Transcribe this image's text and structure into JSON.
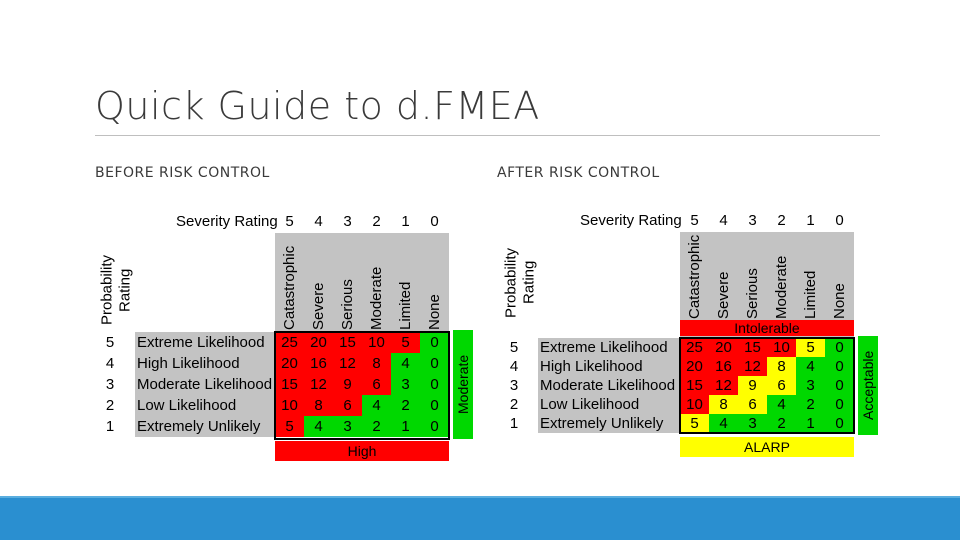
{
  "title": "Quick Guide to d.FMEA",
  "before": {
    "heading": "BEFORE RISK CONTROL",
    "severity_label": "Severity Rating",
    "probability_label_line1": "Probability",
    "probability_label_line2": "Rating",
    "severity_numbers": [
      "5",
      "4",
      "3",
      "2",
      "1",
      "0"
    ],
    "severity_names": [
      "Catastrophic",
      "Severe",
      "Serious",
      "Moderate",
      "Limited",
      "None"
    ],
    "probability_numbers": [
      "5",
      "4",
      "3",
      "2",
      "1"
    ],
    "likelihood_names": [
      "Extreme Likelihood",
      "High Likelihood",
      "Moderate Likelihood",
      "Low Likelihood",
      "Extremely Unlikely"
    ],
    "cells": [
      [
        "25",
        "20",
        "15",
        "10",
        "5",
        "0"
      ],
      [
        "20",
        "16",
        "12",
        "8",
        "4",
        "0"
      ],
      [
        "15",
        "12",
        "9",
        "6",
        "3",
        "0"
      ],
      [
        "10",
        "8",
        "6",
        "4",
        "2",
        "0"
      ],
      [
        "5",
        "4",
        "3",
        "2",
        "1",
        "0"
      ]
    ],
    "zones": [
      [
        "red",
        "red",
        "red",
        "red",
        "red",
        "green"
      ],
      [
        "red",
        "red",
        "red",
        "red",
        "green",
        "green"
      ],
      [
        "red",
        "red",
        "red",
        "red",
        "green",
        "green"
      ],
      [
        "red",
        "red",
        "red",
        "green",
        "green",
        "green"
      ],
      [
        "red",
        "green",
        "green",
        "green",
        "green",
        "green"
      ]
    ],
    "bottom_band": "High",
    "side_band": "Moderate"
  },
  "after": {
    "heading": "AFTER RISK CONTROL",
    "severity_label": "Severity Rating",
    "probability_label_line1": "Probability",
    "probability_label_line2": "Rating",
    "severity_numbers": [
      "5",
      "4",
      "3",
      "2",
      "1",
      "0"
    ],
    "severity_names": [
      "Catastrophic",
      "Severe",
      "Serious",
      "Moderate",
      "Limited",
      "None"
    ],
    "probability_numbers": [
      "5",
      "4",
      "3",
      "2",
      "1"
    ],
    "likelihood_names": [
      "Extreme Likelihood",
      "High Likelihood",
      "Moderate Likelihood",
      "Low Likelihood",
      "Extremely Unlikely"
    ],
    "cells": [
      [
        "25",
        "20",
        "15",
        "10",
        "5",
        "0"
      ],
      [
        "20",
        "16",
        "12",
        "8",
        "4",
        "0"
      ],
      [
        "15",
        "12",
        "9",
        "6",
        "3",
        "0"
      ],
      [
        "10",
        "8",
        "6",
        "4",
        "2",
        "0"
      ],
      [
        "5",
        "4",
        "3",
        "2",
        "1",
        "0"
      ]
    ],
    "zones": [
      [
        "red",
        "red",
        "red",
        "red",
        "yellow",
        "green"
      ],
      [
        "red",
        "red",
        "red",
        "yellow",
        "green",
        "green"
      ],
      [
        "red",
        "red",
        "yellow",
        "yellow",
        "green",
        "green"
      ],
      [
        "red",
        "yellow",
        "yellow",
        "green",
        "green",
        "green"
      ],
      [
        "yellow",
        "green",
        "green",
        "green",
        "green",
        "green"
      ]
    ],
    "top_band": "Intolerable",
    "bottom_band": "ALARP",
    "side_band": "Acceptable"
  },
  "colors": {
    "red": "#ff0000",
    "green": "#00d800",
    "yellow": "#ffff00",
    "grey": "#c3c3c3",
    "footer": "#2a8fd0"
  }
}
